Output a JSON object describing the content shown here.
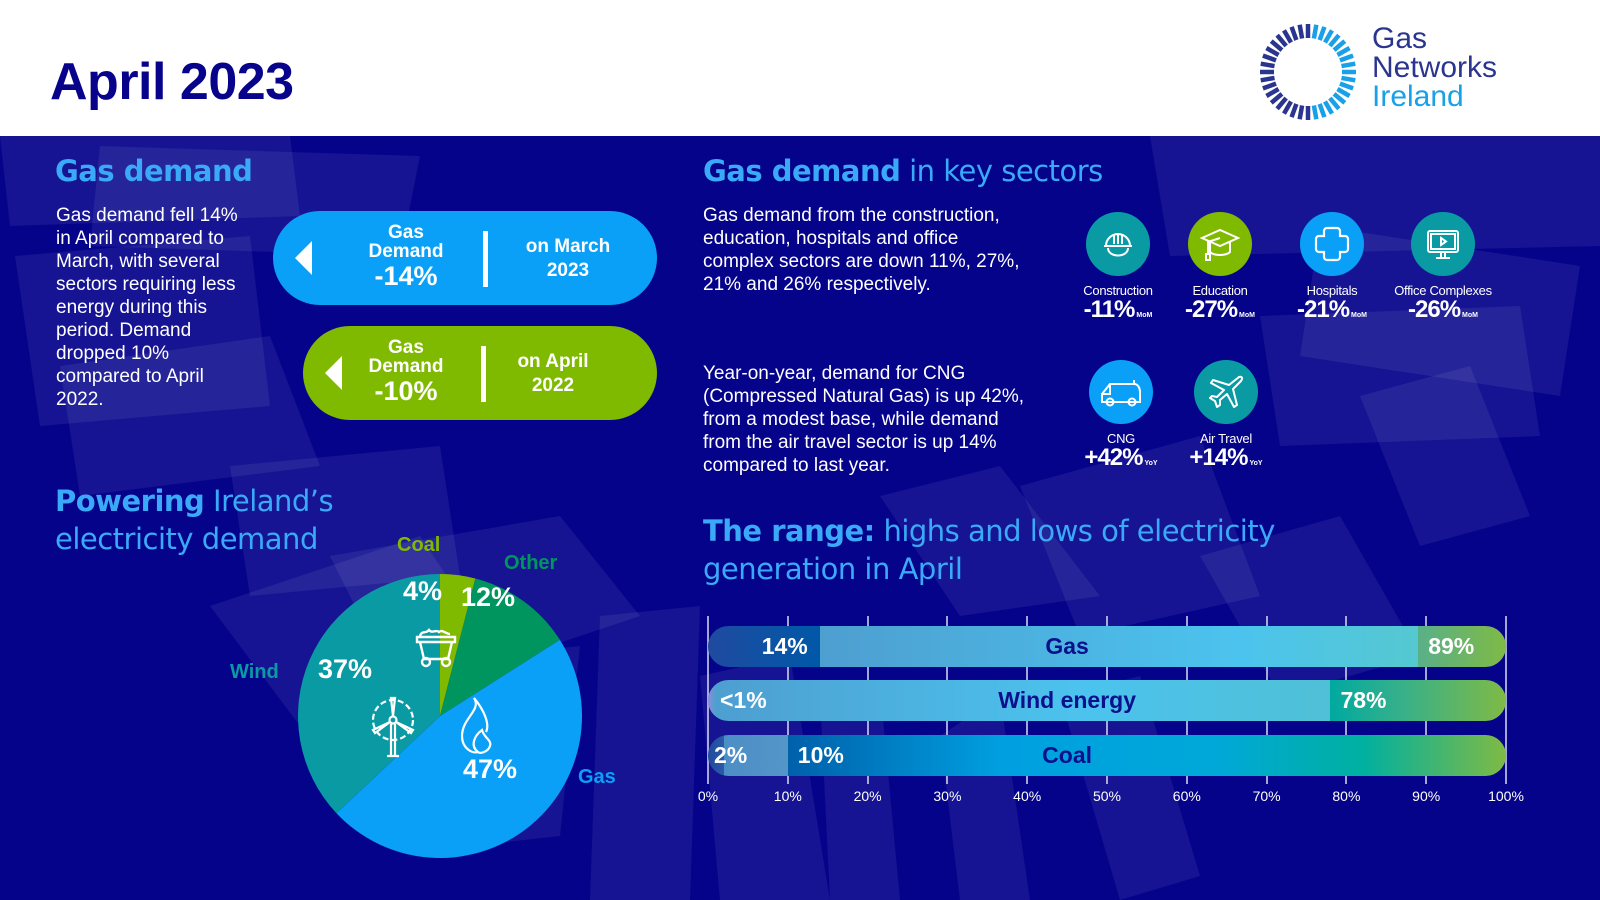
{
  "header": {
    "title": "April 2023",
    "logo": {
      "line1": "Gas",
      "line2": "Networks",
      "line3": "Ireland"
    }
  },
  "gas_demand": {
    "heading": "Gas demand",
    "body": "Gas demand fell 14% in April compared to March, with several sectors requiring less energy during this period. Demand dropped 10% compared to April 2022.",
    "pills": [
      {
        "label_line1": "Gas",
        "label_line2": "Demand",
        "value": "-14%",
        "period_line1": "on March",
        "period_line2": "2023",
        "color": "#0aa0f8"
      },
      {
        "label_line1": "Gas",
        "label_line2": "Demand",
        "value": "-10%",
        "period_line1": "on April",
        "period_line2": "2022",
        "color": "#7fba00"
      }
    ]
  },
  "key_sectors": {
    "heading_bold": "Gas demand",
    "heading_rest": " in key sectors",
    "para1": "Gas demand from the construction, education, hospitals and office complex sectors are down 11%, 27%, 21% and 26% respectively.",
    "para2": "Year-on-year, demand for CNG (Compressed Natural Gas) is up 42%, from a modest base, while demand from the air travel sector is up 14% compared to last year.",
    "sectors": [
      {
        "name": "Construction",
        "value": "-11%",
        "unit": "MoM",
        "icon": "hard-hat-icon",
        "color": "#0a9aa4"
      },
      {
        "name": "Education",
        "value": "-27%",
        "unit": "MoM",
        "icon": "graduation-cap-icon",
        "color": "#7fba00"
      },
      {
        "name": "Hospitals",
        "value": "-21%",
        "unit": "MoM",
        "icon": "medical-cross-icon",
        "color": "#0aa0f8"
      },
      {
        "name": "Office Complexes",
        "value": "-26%",
        "unit": "MoM",
        "icon": "monitor-icon",
        "color": "#0a9aa4"
      },
      {
        "name": "CNG",
        "value": "+42%",
        "unit": "YoY",
        "icon": "van-icon",
        "color": "#0aa0f8"
      },
      {
        "name": "Air Travel",
        "value": "+14%",
        "unit": "YoY",
        "icon": "airplane-icon",
        "color": "#0a9aa4"
      }
    ]
  },
  "electricity": {
    "heading_bold": "Powering",
    "heading_rest": " Ireland’s",
    "heading_line2": "electricity demand"
  },
  "range": {
    "heading_bold": "The range:",
    "heading_rest": " highs and lows of electricity",
    "heading_line2": "generation in April"
  },
  "chart_data": [
    {
      "type": "pie",
      "title": "Powering Ireland’s electricity demand",
      "slices": [
        {
          "label": "Coal",
          "value": 4,
          "display": "4%",
          "color": "#7fba00",
          "icon": "coal-cart-icon"
        },
        {
          "label": "Other",
          "value": 12,
          "display": "12%",
          "color": "#00955f",
          "icon": ""
        },
        {
          "label": "Gas",
          "value": 47,
          "display": "47%",
          "color": "#0aa0f8",
          "icon": "flame-icon"
        },
        {
          "label": "Wind",
          "value": 37,
          "display": "37%",
          "color": "#0a9aa4",
          "icon": "wind-turbine-icon"
        }
      ]
    },
    {
      "type": "bar",
      "title": "The range: highs and lows of electricity generation in April",
      "orientation": "horizontal-range",
      "xlim": [
        0,
        100
      ],
      "x_ticks": [
        "0%",
        "10%",
        "20%",
        "30%",
        "40%",
        "50%",
        "60%",
        "70%",
        "80%",
        "90%",
        "100%"
      ],
      "grid": true,
      "categories": [
        "Gas",
        "Wind energy",
        "Coal"
      ],
      "series": [
        {
          "name": "Gas",
          "low": 14,
          "high": 89,
          "low_label": "14%",
          "high_label": "89%"
        },
        {
          "name": "Wind energy",
          "low": 1,
          "high": 78,
          "low_label": "<1%",
          "high_label": "78%"
        },
        {
          "name": "Coal",
          "low": 2,
          "high": 10,
          "low_label": "2%",
          "high_label": "10%"
        }
      ]
    }
  ]
}
